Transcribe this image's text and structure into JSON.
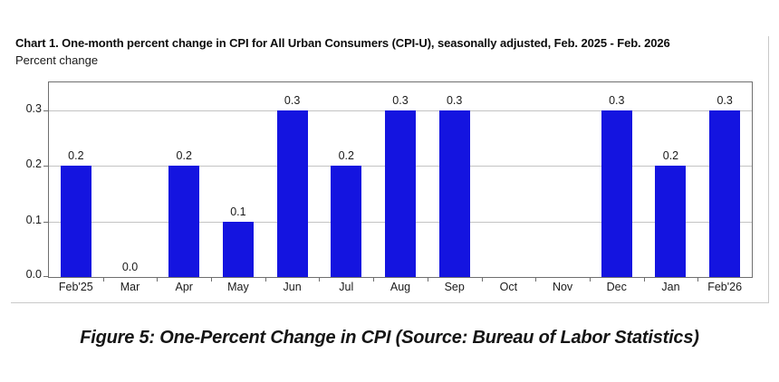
{
  "chart": {
    "title": "Chart 1. One-month percent change in CPI for All Urban Consumers (CPI-U), seasonally adjusted, Feb. 2025 - Feb. 2026",
    "subtitle": "Percent change"
  },
  "caption": "Figure 5: One-Percent Change in CPI (Source: Bureau of Labor Statistics)",
  "chart_data": {
    "type": "bar",
    "title": "Chart 1. One-month percent change in CPI for All Urban Consumers (CPI-U), seasonally adjusted, Feb. 2025 - Feb. 2026",
    "ylabel": "Percent change",
    "categories": [
      "Feb'25",
      "Mar",
      "Apr",
      "May",
      "Jun",
      "Jul",
      "Aug",
      "Sep",
      "Oct",
      "Nov",
      "Dec",
      "Jan",
      "Feb'26"
    ],
    "values": [
      0.2,
      0.0,
      0.2,
      0.1,
      0.3,
      0.2,
      0.3,
      0.3,
      null,
      null,
      0.3,
      0.2,
      0.3
    ],
    "bar_labels": [
      "0.2",
      "0.0",
      "0.2",
      "0.1",
      "0.3",
      "0.2",
      "0.3",
      "0.3",
      "",
      "",
      "0.3",
      "0.2",
      "0.3"
    ],
    "y_ticks": [
      "0.0",
      "0.1",
      "0.2",
      "0.3"
    ],
    "ylim": [
      0,
      0.35
    ],
    "grid": "horizontal",
    "legend": "none",
    "bar_color": "#1414e0"
  }
}
